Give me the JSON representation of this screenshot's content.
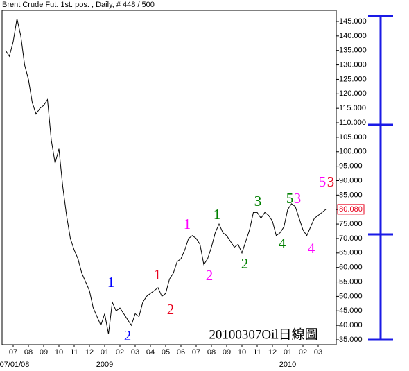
{
  "chart_data": {
    "type": "line",
    "title": "Brent Crude Fut. 1st. pos. , Daily, # 448 / 500",
    "watermark": "20100307Oil日線圖",
    "categories": [
      null,
      null,
      "07",
      null,
      null,
      null,
      "08",
      null,
      null,
      null,
      "09",
      null,
      null,
      null,
      "10",
      null,
      null,
      null,
      "11",
      null,
      null,
      null,
      "12",
      null,
      null,
      null,
      "01",
      null,
      null,
      null,
      "02",
      null,
      null,
      null,
      "03",
      null,
      null,
      null,
      "04",
      null,
      null,
      null,
      "05",
      null,
      null,
      null,
      "06",
      null,
      null,
      null,
      "07",
      null,
      null,
      null,
      "08",
      null,
      null,
      null,
      "09",
      null,
      null,
      null,
      "10",
      null,
      null,
      null,
      "11",
      null,
      null,
      null,
      "12",
      null,
      null,
      null,
      "01",
      null,
      null,
      null,
      "02",
      null,
      null,
      null,
      "03",
      null,
      null
    ],
    "x_sublabels": [
      null,
      null,
      "07/01/08",
      null,
      null,
      null,
      null,
      null,
      null,
      null,
      null,
      null,
      null,
      null,
      null,
      null,
      null,
      null,
      null,
      null,
      null,
      null,
      null,
      null,
      null,
      null,
      "2009",
      null,
      null,
      null,
      null,
      null,
      null,
      null,
      null,
      null,
      null,
      null,
      null,
      null,
      null,
      null,
      null,
      null,
      null,
      null,
      null,
      null,
      null,
      null,
      null,
      null,
      null,
      null,
      null,
      null,
      null,
      null,
      null,
      null,
      null,
      null,
      null,
      null,
      null,
      null,
      null,
      null,
      null,
      null,
      null,
      null,
      null,
      null,
      "2010",
      null,
      null,
      null,
      null,
      null,
      null,
      null,
      null,
      null,
      null
    ],
    "series": [
      {
        "name": "Brent Crude",
        "color": "#000000",
        "values": [
          135,
          133,
          138,
          146,
          140,
          130,
          125,
          117,
          113,
          115,
          116,
          118,
          104,
          96,
          101,
          88,
          78,
          70,
          66,
          63,
          58,
          55,
          52,
          46,
          43,
          40,
          44,
          37,
          48,
          45,
          46,
          44,
          42,
          40,
          44,
          43,
          48,
          50,
          51,
          52,
          53,
          50,
          51,
          56,
          58,
          62,
          63,
          66,
          70,
          71,
          70,
          68,
          61,
          63,
          67,
          72,
          75,
          72,
          71,
          69,
          67,
          68,
          65,
          69,
          73,
          79,
          79,
          77,
          79,
          78,
          76,
          71,
          72,
          74,
          80,
          82,
          81,
          77,
          73,
          71,
          74,
          77,
          78,
          79,
          80.08
        ],
        "value_labels": [
          null,
          null,
          null,
          null,
          null,
          null,
          null,
          null,
          null,
          null,
          null,
          null,
          null,
          null,
          null,
          null,
          null,
          null,
          null,
          null,
          null,
          null,
          null,
          null,
          null,
          null,
          null,
          null,
          null,
          null,
          null,
          null,
          null,
          null,
          null,
          null,
          null,
          null,
          null,
          null,
          null,
          null,
          null,
          null,
          null,
          null,
          null,
          null,
          null,
          null,
          null,
          null,
          null,
          null,
          null,
          null,
          null,
          null,
          null,
          null,
          null,
          null,
          null,
          null,
          null,
          null,
          null,
          null,
          null,
          null,
          null,
          null,
          null,
          null,
          null,
          null,
          null,
          null,
          null,
          null,
          null,
          null,
          null,
          null,
          "80.080"
        ]
      }
    ],
    "ylim": [
      33.32,
      148.83
    ],
    "yticks": [
      {
        "value": 35,
        "label": "35.000"
      },
      {
        "value": 40,
        "label": "40.000"
      },
      {
        "value": 45,
        "label": "45.000"
      },
      {
        "value": 50,
        "label": "50.000"
      },
      {
        "value": 55,
        "label": "55.000"
      },
      {
        "value": 60,
        "label": "60.000"
      },
      {
        "value": 65,
        "label": "65.000"
      },
      {
        "value": 70,
        "label": "70.000"
      },
      {
        "value": 75,
        "label": "75.000"
      },
      {
        "value": 80,
        "label": "80.000"
      },
      {
        "value": 85,
        "label": "85.000"
      },
      {
        "value": 90,
        "label": "90.000"
      },
      {
        "value": 95,
        "label": "95.000"
      },
      {
        "value": 100,
        "label": "100.000"
      },
      {
        "value": 105,
        "label": "105.000"
      },
      {
        "value": 110,
        "label": "110.000"
      },
      {
        "value": 115,
        "label": "115.000"
      },
      {
        "value": 120,
        "label": "120.000"
      },
      {
        "value": 125,
        "label": "125.000"
      },
      {
        "value": 130,
        "label": "130.000"
      },
      {
        "value": 135,
        "label": "135.000"
      },
      {
        "value": 140,
        "label": "140.000"
      },
      {
        "value": 145,
        "label": "145.000"
      }
    ],
    "grid": false,
    "annotations": [
      {
        "text": "1",
        "color": "#0000ff"
      },
      {
        "text": "2",
        "color": "#0000ff"
      },
      {
        "text": "1",
        "color": "#e8001c"
      },
      {
        "text": "2",
        "color": "#e8001c"
      },
      {
        "text": "1",
        "color": "#ff00ff"
      },
      {
        "text": "2",
        "color": "#ff00ff"
      },
      {
        "text": "1",
        "color": "#008000"
      },
      {
        "text": "2",
        "color": "#008000"
      },
      {
        "text": "3",
        "color": "#008000"
      },
      {
        "text": "4",
        "color": "#008000"
      },
      {
        "text": "5",
        "color": "#008000"
      },
      {
        "text": "3",
        "color": "#ff00ff"
      },
      {
        "text": "4",
        "color": "#ff00ff"
      },
      {
        "text": "5",
        "color": "#ff00ff"
      },
      {
        "text": "3",
        "color": "#e8001c"
      }
    ]
  }
}
